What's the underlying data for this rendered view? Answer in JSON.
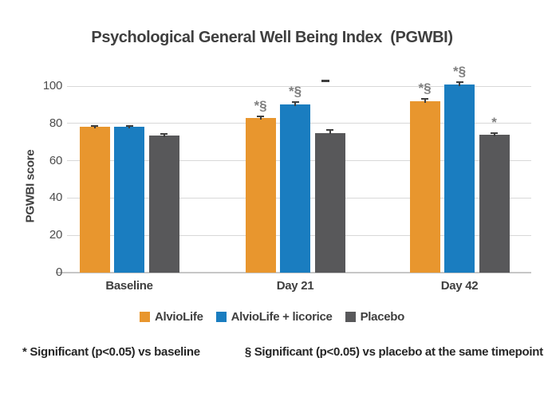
{
  "chart_data": {
    "type": "bar",
    "title": "Psychological General Well Being Index  (PGWBI)",
    "ylabel": "PGWBI score",
    "xlabel": "",
    "categories": [
      "Baseline",
      "Day 21",
      "Day 42"
    ],
    "series": [
      {
        "name": "AlvioLife",
        "color": "#E8962E",
        "values": [
          78,
          83,
          92
        ],
        "errors": [
          0.6,
          0.6,
          1.2
        ],
        "markers": [
          "",
          "*§",
          "*§"
        ]
      },
      {
        "name": "AlvioLife + licorice",
        "color": "#1A7DC0",
        "values": [
          78,
          90,
          101
        ],
        "errors": [
          0.6,
          1.5,
          1.2
        ],
        "markers": [
          "",
          "*§",
          "*§"
        ]
      },
      {
        "name": "Placebo",
        "color": "#58585A",
        "values": [
          73.5,
          75,
          74
        ],
        "errors": [
          0.8,
          1.3,
          0.8
        ],
        "markers": [
          "",
          "",
          "*"
        ]
      }
    ],
    "y_ticks": [
      0,
      20,
      40,
      60,
      80,
      100
    ],
    "ylim": [
      0,
      110
    ],
    "grid": true,
    "legend_position": "bottom",
    "marker_color": "#7f7f7f",
    "annotations": [
      {
        "name": "dash-mark",
        "text": "-",
        "group": "Day 21",
        "series": "Placebo",
        "value": 103
      }
    ],
    "footnotes": [
      "* Significant (p<0.05) vs baseline",
      "§ Significant (p<0.05) vs placebo at the same timepoint"
    ]
  }
}
